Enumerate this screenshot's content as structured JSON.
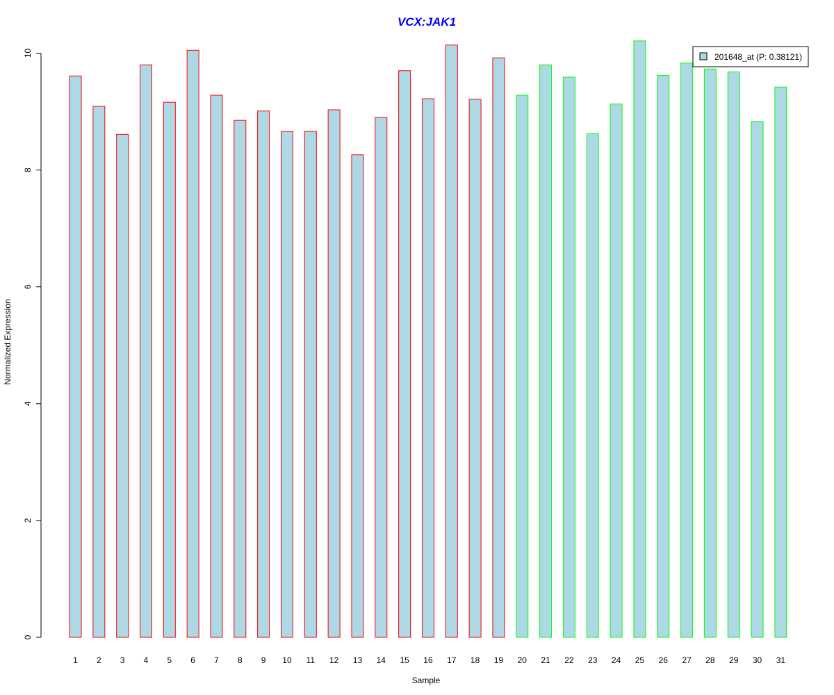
{
  "chart_data": {
    "type": "bar",
    "title": "VCX:JAK1",
    "xlabel": "Sample",
    "ylabel": "Normalized Expression",
    "ylim": [
      0,
      10.2
    ],
    "yticks": [
      0,
      2,
      4,
      6,
      8,
      10
    ],
    "grid": false,
    "legend_placement": "top-right",
    "categories": [
      "1",
      "2",
      "3",
      "4",
      "5",
      "6",
      "7",
      "8",
      "9",
      "10",
      "11",
      "12",
      "13",
      "14",
      "15",
      "16",
      "17",
      "18",
      "19",
      "20",
      "21",
      "22",
      "23",
      "24",
      "25",
      "26",
      "27",
      "28",
      "29",
      "30",
      "31"
    ],
    "series": [
      {
        "name": "201648_at (P: 0.38121)",
        "values": [
          9.61,
          9.09,
          8.61,
          9.8,
          9.16,
          10.05,
          9.28,
          8.85,
          9.01,
          8.66,
          8.66,
          9.03,
          8.26,
          8.9,
          9.7,
          9.22,
          10.14,
          9.21,
          9.92,
          9.28,
          9.8,
          9.59,
          8.62,
          9.13,
          10.21,
          9.62,
          9.83,
          9.73,
          9.68,
          8.83,
          9.42
        ],
        "groups": [
          "red",
          "red",
          "red",
          "red",
          "red",
          "red",
          "red",
          "red",
          "red",
          "red",
          "red",
          "red",
          "red",
          "red",
          "red",
          "red",
          "red",
          "red",
          "red",
          "green",
          "green",
          "green",
          "green",
          "green",
          "green",
          "green",
          "green",
          "green",
          "green",
          "green",
          "green"
        ]
      }
    ],
    "colors": {
      "bar_fill": "#add8e6",
      "group_red": "#ff0000",
      "group_green": "#00ff00",
      "title": "#0000ff",
      "axis": "#000000"
    }
  }
}
